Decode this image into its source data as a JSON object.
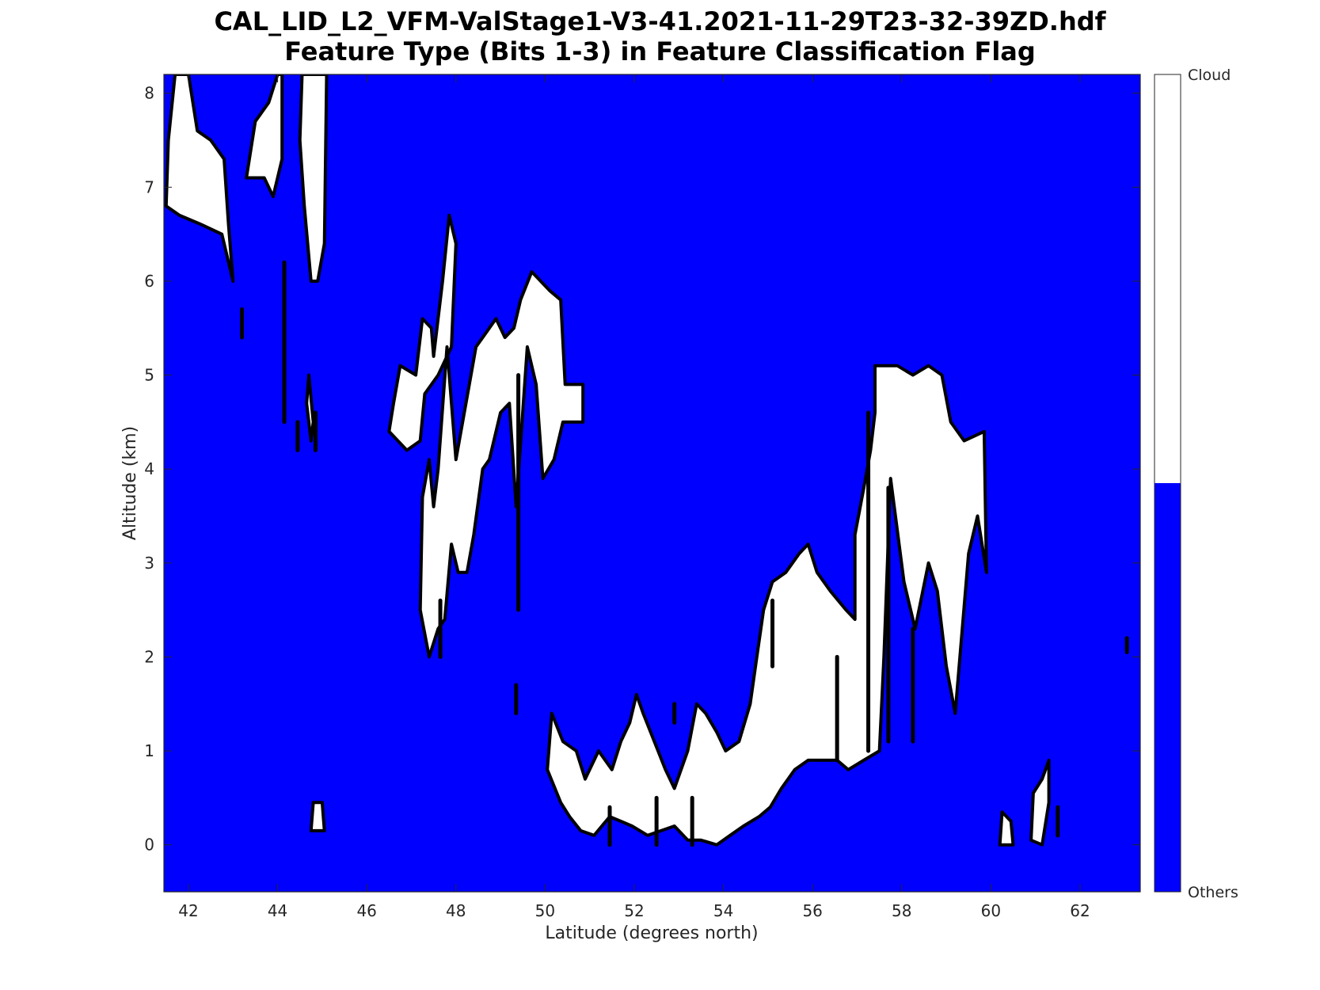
{
  "chart_data": {
    "type": "heatmap",
    "title_line1": "CAL_LID_L2_VFM-ValStage1-V3-41.2021-11-29T23-32-39ZD.hdf",
    "title_line2": "Feature Type  (Bits 1-3) in Feature Classification Flag",
    "xlabel": "Latitude (degrees north)",
    "ylabel": "Altitude (km)",
    "xlim": [
      41.45,
      63.35
    ],
    "ylim": [
      -0.5,
      8.2
    ],
    "xticks": [
      42,
      44,
      46,
      48,
      50,
      52,
      54,
      56,
      58,
      60,
      62
    ],
    "yticks": [
      0,
      1,
      2,
      3,
      4,
      5,
      6,
      7,
      8
    ],
    "grid": false,
    "background_class": "Others",
    "colorbar": {
      "labels": [
        "Cloud",
        "Others"
      ],
      "colors": {
        "Cloud": "#ffffff",
        "Others": "#0000ff"
      },
      "split_fraction": 0.5
    },
    "cloud_regions": [
      {
        "name": "cloud-region-1",
        "points": [
          [
            41.5,
            6.8
          ],
          [
            41.55,
            7.5
          ],
          [
            41.7,
            8.2
          ],
          [
            42.0,
            8.2
          ],
          [
            42.2,
            7.6
          ],
          [
            42.5,
            7.5
          ],
          [
            42.8,
            7.3
          ],
          [
            42.9,
            6.6
          ],
          [
            43.0,
            6.0
          ],
          [
            42.75,
            6.5
          ],
          [
            42.3,
            6.6
          ],
          [
            41.8,
            6.7
          ]
        ]
      },
      {
        "name": "cloud-region-2",
        "points": [
          [
            43.3,
            7.1
          ],
          [
            43.5,
            7.7
          ],
          [
            43.8,
            7.9
          ],
          [
            44.0,
            8.2
          ],
          [
            44.1,
            8.2
          ],
          [
            44.1,
            7.3
          ],
          [
            43.9,
            6.9
          ],
          [
            43.7,
            7.1
          ]
        ]
      },
      {
        "name": "cloud-region-3",
        "points": [
          [
            44.5,
            7.5
          ],
          [
            44.55,
            8.2
          ],
          [
            45.1,
            8.2
          ],
          [
            45.05,
            6.4
          ],
          [
            44.9,
            6.0
          ],
          [
            44.75,
            6.0
          ],
          [
            44.6,
            6.8
          ]
        ]
      },
      {
        "name": "cloud-region-4",
        "points": [
          [
            44.65,
            4.7
          ],
          [
            44.7,
            5.0
          ],
          [
            44.8,
            4.5
          ],
          [
            44.75,
            4.3
          ]
        ]
      },
      {
        "name": "cloud-region-5",
        "points": [
          [
            46.5,
            4.4
          ],
          [
            46.6,
            4.7
          ],
          [
            46.75,
            5.1
          ],
          [
            47.1,
            5.0
          ],
          [
            47.25,
            5.6
          ],
          [
            47.45,
            5.5
          ],
          [
            47.5,
            5.2
          ],
          [
            47.7,
            6.0
          ],
          [
            47.85,
            6.7
          ],
          [
            48.0,
            6.4
          ],
          [
            47.9,
            5.3
          ],
          [
            47.6,
            5.0
          ],
          [
            47.3,
            4.8
          ],
          [
            47.2,
            4.3
          ],
          [
            46.9,
            4.2
          ]
        ]
      },
      {
        "name": "cloud-region-6",
        "points": [
          [
            47.2,
            2.5
          ],
          [
            47.25,
            3.7
          ],
          [
            47.4,
            4.1
          ],
          [
            47.5,
            3.6
          ],
          [
            47.6,
            4.0
          ],
          [
            47.8,
            5.3
          ],
          [
            48.0,
            4.1
          ],
          [
            48.3,
            4.9
          ],
          [
            48.45,
            5.3
          ],
          [
            48.6,
            5.4
          ],
          [
            48.9,
            5.6
          ],
          [
            49.1,
            5.4
          ],
          [
            49.3,
            5.5
          ],
          [
            49.45,
            5.8
          ],
          [
            49.7,
            6.1
          ],
          [
            50.1,
            5.9
          ],
          [
            50.35,
            5.8
          ],
          [
            50.45,
            4.9
          ],
          [
            50.85,
            4.9
          ],
          [
            50.85,
            4.5
          ],
          [
            50.4,
            4.5
          ],
          [
            50.2,
            4.1
          ],
          [
            49.95,
            3.9
          ],
          [
            49.8,
            4.9
          ],
          [
            49.6,
            5.3
          ],
          [
            49.35,
            3.6
          ],
          [
            49.2,
            4.7
          ],
          [
            49.0,
            4.6
          ],
          [
            48.75,
            4.1
          ],
          [
            48.6,
            4.0
          ],
          [
            48.4,
            3.3
          ],
          [
            48.25,
            2.9
          ],
          [
            48.05,
            2.9
          ],
          [
            47.9,
            3.2
          ],
          [
            47.75,
            2.4
          ],
          [
            47.6,
            2.3
          ],
          [
            47.4,
            2.0
          ]
        ]
      },
      {
        "name": "cloud-region-7",
        "points": [
          [
            50.05,
            0.8
          ],
          [
            50.15,
            1.4
          ],
          [
            50.4,
            1.1
          ],
          [
            50.7,
            1.0
          ],
          [
            50.9,
            0.7
          ],
          [
            51.2,
            1.0
          ],
          [
            51.5,
            0.8
          ],
          [
            51.7,
            1.1
          ],
          [
            51.9,
            1.3
          ],
          [
            52.05,
            1.6
          ],
          [
            52.2,
            1.4
          ],
          [
            52.45,
            1.1
          ],
          [
            52.7,
            0.8
          ],
          [
            52.9,
            0.6
          ],
          [
            53.2,
            1.0
          ],
          [
            53.4,
            1.5
          ],
          [
            53.6,
            1.4
          ],
          [
            53.85,
            1.2
          ],
          [
            54.05,
            1.0
          ],
          [
            54.35,
            1.1
          ],
          [
            54.6,
            1.5
          ],
          [
            54.75,
            2.0
          ],
          [
            54.9,
            2.5
          ],
          [
            55.1,
            2.8
          ],
          [
            55.4,
            2.9
          ],
          [
            55.7,
            3.1
          ],
          [
            55.9,
            3.2
          ],
          [
            56.1,
            2.9
          ],
          [
            56.4,
            2.7
          ],
          [
            56.75,
            2.5
          ],
          [
            56.95,
            2.4
          ],
          [
            56.95,
            3.3
          ],
          [
            57.15,
            3.8
          ],
          [
            57.3,
            4.2
          ],
          [
            57.4,
            4.6
          ],
          [
            57.4,
            5.1
          ],
          [
            57.9,
            5.1
          ],
          [
            58.25,
            5.0
          ],
          [
            58.6,
            5.1
          ],
          [
            58.9,
            5.0
          ],
          [
            59.1,
            4.5
          ],
          [
            59.4,
            4.3
          ],
          [
            59.85,
            4.4
          ],
          [
            59.9,
            2.9
          ],
          [
            59.7,
            3.5
          ],
          [
            59.5,
            3.1
          ],
          [
            59.2,
            1.4
          ],
          [
            59.0,
            1.9
          ],
          [
            58.8,
            2.7
          ],
          [
            58.6,
            3.0
          ],
          [
            58.3,
            2.3
          ],
          [
            58.05,
            2.8
          ],
          [
            57.75,
            3.9
          ],
          [
            57.6,
            2.0
          ],
          [
            57.5,
            1.0
          ],
          [
            57.15,
            0.9
          ],
          [
            56.8,
            0.8
          ],
          [
            56.55,
            0.9
          ],
          [
            56.25,
            0.9
          ],
          [
            55.9,
            0.9
          ],
          [
            55.6,
            0.8
          ],
          [
            55.3,
            0.6
          ],
          [
            55.05,
            0.4
          ],
          [
            54.8,
            0.3
          ],
          [
            54.45,
            0.2
          ],
          [
            54.15,
            0.1
          ],
          [
            53.85,
            0.0
          ],
          [
            53.5,
            0.05
          ],
          [
            53.2,
            0.05
          ],
          [
            52.9,
            0.2
          ],
          [
            52.6,
            0.15
          ],
          [
            52.3,
            0.1
          ],
          [
            51.95,
            0.2
          ],
          [
            51.7,
            0.25
          ],
          [
            51.45,
            0.3
          ],
          [
            51.1,
            0.1
          ],
          [
            50.8,
            0.15
          ],
          [
            50.55,
            0.3
          ],
          [
            50.35,
            0.45
          ]
        ]
      },
      {
        "name": "cloud-region-8",
        "points": [
          [
            44.75,
            0.15
          ],
          [
            44.8,
            0.45
          ],
          [
            45.0,
            0.45
          ],
          [
            45.05,
            0.15
          ]
        ]
      },
      {
        "name": "cloud-region-9",
        "points": [
          [
            60.2,
            0.0
          ],
          [
            60.25,
            0.35
          ],
          [
            60.45,
            0.25
          ],
          [
            60.5,
            0.0
          ]
        ]
      },
      {
        "name": "cloud-region-10",
        "points": [
          [
            60.9,
            0.05
          ],
          [
            60.95,
            0.55
          ],
          [
            61.15,
            0.7
          ],
          [
            61.3,
            0.9
          ],
          [
            61.3,
            0.45
          ],
          [
            61.15,
            0.0
          ]
        ]
      }
    ],
    "thin_features": [
      {
        "name": "feature-line-1",
        "x": 43.2,
        "y": [
          5.4,
          5.7
        ]
      },
      {
        "name": "feature-line-2",
        "x": 44.15,
        "y": [
          4.5,
          6.2
        ]
      },
      {
        "name": "feature-line-3",
        "x": 44.45,
        "y": [
          4.2,
          4.5
        ]
      },
      {
        "name": "feature-line-4",
        "x": 44.85,
        "y": [
          4.2,
          4.6
        ]
      },
      {
        "name": "feature-line-5",
        "x": 49.35,
        "y": [
          1.4,
          1.7
        ]
      },
      {
        "name": "feature-line-6",
        "x": 52.9,
        "y": [
          1.3,
          1.5
        ]
      },
      {
        "name": "feature-line-7",
        "x": 61.5,
        "y": [
          0.1,
          0.4
        ]
      },
      {
        "name": "feature-line-8",
        "x": 63.05,
        "y": [
          2.05,
          2.2
        ]
      },
      {
        "name": "feature-line-9",
        "x": 49.4,
        "y": [
          2.5,
          5.0
        ]
      },
      {
        "name": "feature-line-10",
        "x": 55.1,
        "y": [
          1.9,
          2.6
        ]
      },
      {
        "name": "feature-line-11",
        "x": 56.55,
        "y": [
          0.9,
          2.0
        ]
      },
      {
        "name": "feature-line-12",
        "x": 57.25,
        "y": [
          1.0,
          4.6
        ]
      },
      {
        "name": "feature-line-13",
        "x": 57.7,
        "y": [
          1.1,
          3.8
        ]
      },
      {
        "name": "feature-line-14",
        "x": 58.25,
        "y": [
          1.1,
          2.3
        ]
      },
      {
        "name": "feature-line-15",
        "x": 51.45,
        "y": [
          0.0,
          0.4
        ]
      },
      {
        "name": "feature-line-16",
        "x": 52.5,
        "y": [
          0.0,
          0.5
        ]
      },
      {
        "name": "feature-line-17",
        "x": 53.3,
        "y": [
          0.0,
          0.5
        ]
      },
      {
        "name": "feature-line-18",
        "x": 47.65,
        "y": [
          2.0,
          2.6
        ]
      }
    ]
  }
}
